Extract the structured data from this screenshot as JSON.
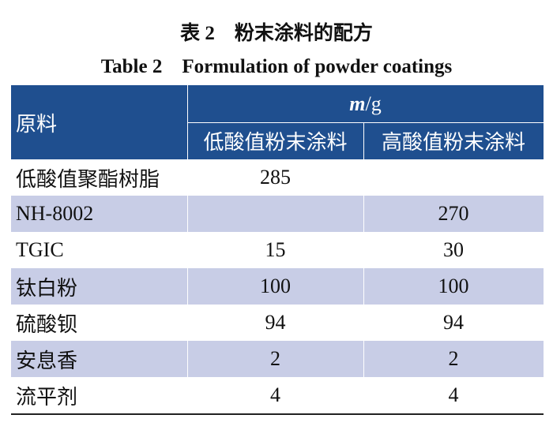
{
  "caption": {
    "title_cn": "表 2　粉末涂料的配方",
    "title_en": "Table 2　Formulation of powder coatings"
  },
  "table": {
    "header": {
      "first": "原料",
      "unit_symbol": "m",
      "unit_rest": "/g",
      "columns": [
        "低酸值粉末涂料",
        "高酸值粉末涂料"
      ]
    },
    "rows": [
      [
        "低酸值聚酯树脂",
        "285",
        null
      ],
      [
        "NH-8002",
        null,
        "270"
      ],
      [
        "TGIC",
        "15",
        "30"
      ],
      [
        "钛白粉",
        "100",
        "100"
      ],
      [
        "硫酸钡",
        "94",
        "94"
      ],
      [
        "安息香",
        "2",
        "2"
      ],
      [
        "流平剂",
        "4",
        "4"
      ]
    ]
  }
}
